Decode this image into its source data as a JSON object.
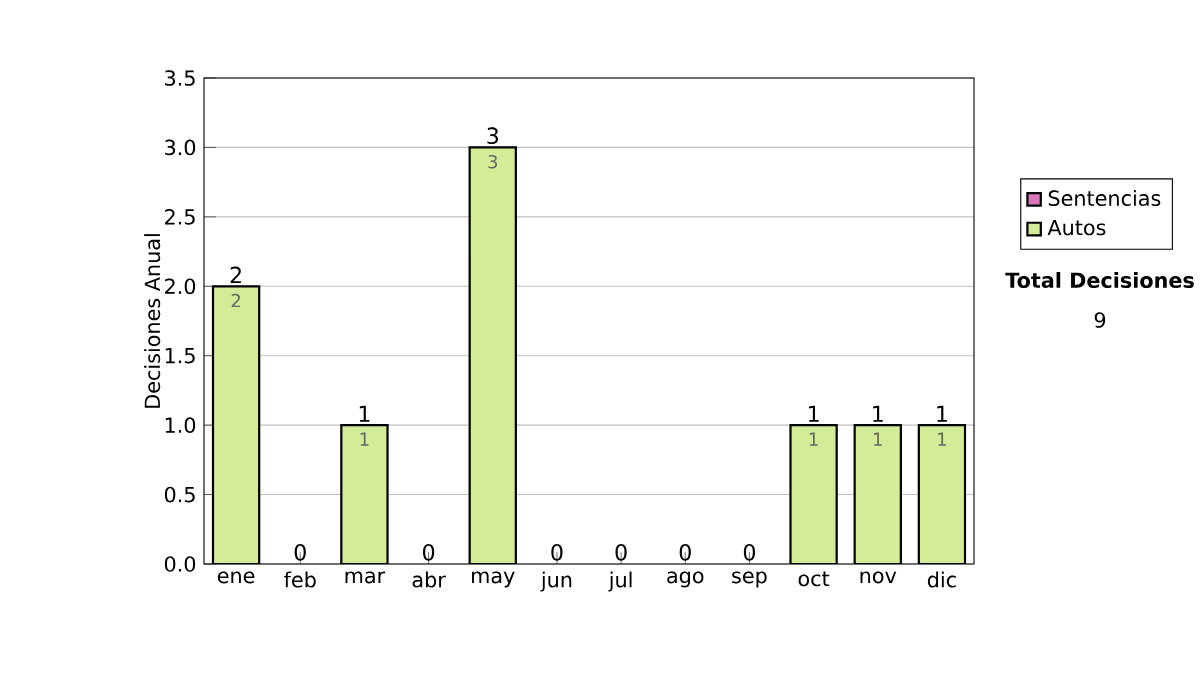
{
  "chart_data": {
    "type": "bar",
    "stacked": true,
    "ylabel": "Decisiones Anual",
    "categories": [
      "ene",
      "feb",
      "mar",
      "abr",
      "may",
      "jun",
      "jul",
      "ago",
      "sep",
      "oct",
      "nov",
      "dic"
    ],
    "series": [
      {
        "name": "Sentencias",
        "color": "#dd77bb",
        "values": [
          0,
          0,
          0,
          0,
          0,
          0,
          0,
          0,
          0,
          0,
          0,
          0
        ]
      },
      {
        "name": "Autos",
        "color": "#d4ec98",
        "values": [
          2,
          0,
          1,
          0,
          3,
          0,
          0,
          0,
          0,
          1,
          1,
          1
        ],
        "value_labels": [
          "2",
          null,
          "1",
          null,
          "3",
          null,
          null,
          null,
          null,
          "1",
          "1",
          "1"
        ]
      }
    ],
    "totals": [
      "2",
      "0",
      "1",
      "0",
      "3",
      "0",
      "0",
      "0",
      "0",
      "1",
      "1",
      "1"
    ],
    "ylim": [
      0,
      3.5
    ],
    "yticks": [
      {
        "value": 0,
        "label": "0.0"
      },
      {
        "value": 0.5,
        "label": "0.5"
      },
      {
        "value": 1,
        "label": "1.0"
      },
      {
        "value": 1.5,
        "label": "1.5"
      },
      {
        "value": 2,
        "label": "2.0"
      },
      {
        "value": 2.5,
        "label": "2.5"
      },
      {
        "value": 3,
        "label": "3.0"
      },
      {
        "value": 3.5,
        "label": "3.5"
      }
    ],
    "grid": "y",
    "legend": "right",
    "annotations": [
      "Total Decisiones",
      "9"
    ]
  }
}
